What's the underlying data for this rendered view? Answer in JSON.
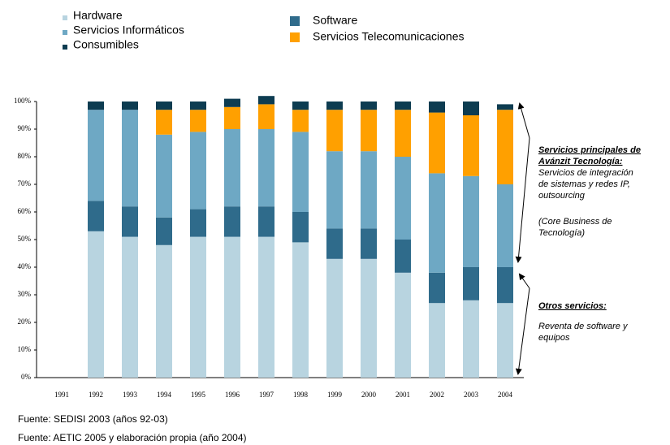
{
  "chart_data": {
    "type": "stacked_bar",
    "categories": [
      "1991",
      "1992",
      "1993",
      "1994",
      "1995",
      "1996",
      "1997",
      "1998",
      "1999",
      "2000",
      "2001",
      "2002",
      "2003",
      "2004"
    ],
    "series": [
      {
        "name": "Hardware",
        "color": "#b8d4e0",
        "values": [
          null,
          53,
          51,
          48,
          51,
          51,
          51,
          49,
          43,
          43,
          38,
          27,
          28,
          27
        ]
      },
      {
        "name": "Software",
        "color": "#2f6b8b",
        "values": [
          null,
          11,
          11,
          10,
          10,
          11,
          11,
          11,
          11,
          11,
          12,
          11,
          12,
          13
        ]
      },
      {
        "name": "Servicios Informáticos",
        "color": "#6ea8c4",
        "values": [
          null,
          33,
          35,
          30,
          28,
          28,
          28,
          29,
          28,
          28,
          30,
          36,
          33,
          30
        ]
      },
      {
        "name": "Servicios Telecomunicaciones",
        "color": "#ffa000",
        "values": [
          null,
          0,
          0,
          9,
          8,
          8,
          9,
          8,
          15,
          15,
          17,
          22,
          22,
          27
        ]
      },
      {
        "name": "Consumibles",
        "color": "#0d3c51",
        "values": [
          null,
          3,
          3,
          3,
          3,
          3,
          3,
          3,
          3,
          3,
          3,
          4,
          5,
          2
        ]
      }
    ],
    "ylim": [
      0,
      100
    ],
    "yticks": [
      {
        "value": 0,
        "label": "0%"
      },
      {
        "value": 10,
        "label": "10%"
      },
      {
        "value": 20,
        "label": "20%"
      },
      {
        "value": 30,
        "label": "30%"
      },
      {
        "value": 40,
        "label": "40%"
      },
      {
        "value": 50,
        "label": "50%"
      },
      {
        "value": 60,
        "label": "60%"
      },
      {
        "value": 70,
        "label": "70%"
      },
      {
        "value": 80,
        "label": "80%"
      },
      {
        "value": 90,
        "label": "90%"
      },
      {
        "value": 100,
        "label": "100%"
      }
    ],
    "annotations": [
      {
        "title": [
          "Servicios principales de",
          "Avánzit Tecnología:"
        ],
        "body": [
          "Servicios de integración",
          "de sistemas y redes IP,",
          "outsourcing"
        ],
        "note": [
          "(Core Business de",
          "Tecnología)"
        ]
      },
      {
        "title": [
          "Otros servicios:"
        ],
        "body": [
          "Reventa de software y",
          "equipos"
        ]
      }
    ],
    "sources": [
      "Fuente: SEDISI 2003 (años 92-03)",
      "Fuente: AETIC 2005  y elaboración propia (año 2004)"
    ]
  }
}
